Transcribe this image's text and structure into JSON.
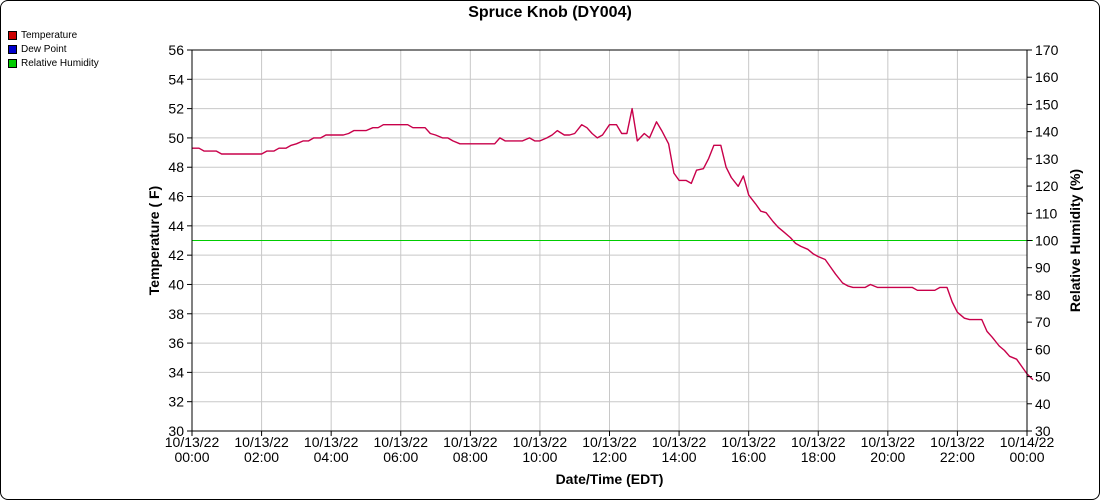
{
  "chart_data": {
    "type": "line",
    "title": "Spruce Knob (DY004)",
    "xlabel": "Date/Time (EDT)",
    "ylabel": "Temperature ( F)",
    "y2label": "Relative Humidity (%)",
    "xlim_hours": [
      0,
      24
    ],
    "ylim": [
      30,
      56
    ],
    "y2lim": [
      30,
      170
    ],
    "grid": true,
    "legend_placement": "top-left",
    "y_ticks": [
      30,
      32,
      34,
      36,
      38,
      40,
      42,
      44,
      46,
      48,
      50,
      52,
      54,
      56
    ],
    "y2_ticks": [
      30,
      40,
      50,
      60,
      70,
      80,
      90,
      100,
      110,
      120,
      130,
      140,
      150,
      160,
      170
    ],
    "x_tick_labels": [
      {
        "date": "10/13/22",
        "time": "00:00"
      },
      {
        "date": "10/13/22",
        "time": "02:00"
      },
      {
        "date": "10/13/22",
        "time": "04:00"
      },
      {
        "date": "10/13/22",
        "time": "06:00"
      },
      {
        "date": "10/13/22",
        "time": "08:00"
      },
      {
        "date": "10/13/22",
        "time": "10:00"
      },
      {
        "date": "10/13/22",
        "time": "12:00"
      },
      {
        "date": "10/13/22",
        "time": "14:00"
      },
      {
        "date": "10/13/22",
        "time": "16:00"
      },
      {
        "date": "10/13/22",
        "time": "18:00"
      },
      {
        "date": "10/13/22",
        "time": "20:00"
      },
      {
        "date": "10/13/22",
        "time": "22:00"
      },
      {
        "date": "10/14/22",
        "time": "00:00"
      }
    ],
    "legend": [
      {
        "name": "Temperature",
        "color": "#cc0000"
      },
      {
        "name": "Dew Point",
        "color": "#0000cc"
      },
      {
        "name": "Relative Humidity",
        "color": "#00cc00"
      }
    ],
    "series": [
      {
        "name": "Temperature",
        "color": "#c8004a",
        "axis": "left",
        "points": [
          [
            0.0,
            49.3
          ],
          [
            0.2,
            49.3
          ],
          [
            0.35,
            49.1
          ],
          [
            0.5,
            49.1
          ],
          [
            0.7,
            49.1
          ],
          [
            0.85,
            48.9
          ],
          [
            1.0,
            48.9
          ],
          [
            1.5,
            48.9
          ],
          [
            2.0,
            48.9
          ],
          [
            2.15,
            49.1
          ],
          [
            2.35,
            49.1
          ],
          [
            2.5,
            49.3
          ],
          [
            2.7,
            49.3
          ],
          [
            2.85,
            49.5
          ],
          [
            3.0,
            49.6
          ],
          [
            3.2,
            49.8
          ],
          [
            3.35,
            49.8
          ],
          [
            3.5,
            50.0
          ],
          [
            3.7,
            50.0
          ],
          [
            3.85,
            50.2
          ],
          [
            4.0,
            50.2
          ],
          [
            4.35,
            50.2
          ],
          [
            4.5,
            50.3
          ],
          [
            4.65,
            50.5
          ],
          [
            5.0,
            50.5
          ],
          [
            5.2,
            50.7
          ],
          [
            5.35,
            50.7
          ],
          [
            5.5,
            50.9
          ],
          [
            6.0,
            50.9
          ],
          [
            6.2,
            50.9
          ],
          [
            6.35,
            50.7
          ],
          [
            6.7,
            50.7
          ],
          [
            6.85,
            50.3
          ],
          [
            7.0,
            50.2
          ],
          [
            7.2,
            50.0
          ],
          [
            7.35,
            50.0
          ],
          [
            7.5,
            49.8
          ],
          [
            7.7,
            49.6
          ],
          [
            8.0,
            49.6
          ],
          [
            8.5,
            49.6
          ],
          [
            8.7,
            49.6
          ],
          [
            8.85,
            50.0
          ],
          [
            9.0,
            49.8
          ],
          [
            9.2,
            49.8
          ],
          [
            9.5,
            49.8
          ],
          [
            9.7,
            50.0
          ],
          [
            9.85,
            49.8
          ],
          [
            10.0,
            49.8
          ],
          [
            10.2,
            50.0
          ],
          [
            10.35,
            50.2
          ],
          [
            10.5,
            50.5
          ],
          [
            10.7,
            50.2
          ],
          [
            10.85,
            50.2
          ],
          [
            11.0,
            50.3
          ],
          [
            11.2,
            50.9
          ],
          [
            11.35,
            50.7
          ],
          [
            11.5,
            50.3
          ],
          [
            11.65,
            50.0
          ],
          [
            11.8,
            50.2
          ],
          [
            12.0,
            50.9
          ],
          [
            12.2,
            50.9
          ],
          [
            12.35,
            50.3
          ],
          [
            12.5,
            50.3
          ],
          [
            12.65,
            52.0
          ],
          [
            12.8,
            49.8
          ],
          [
            13.0,
            50.3
          ],
          [
            13.15,
            50.0
          ],
          [
            13.35,
            51.1
          ],
          [
            13.5,
            50.5
          ],
          [
            13.7,
            49.6
          ],
          [
            13.85,
            47.6
          ],
          [
            14.0,
            47.1
          ],
          [
            14.2,
            47.1
          ],
          [
            14.35,
            46.9
          ],
          [
            14.5,
            47.8
          ],
          [
            14.7,
            47.9
          ],
          [
            14.85,
            48.6
          ],
          [
            15.0,
            49.5
          ],
          [
            15.2,
            49.5
          ],
          [
            15.35,
            48.0
          ],
          [
            15.5,
            47.3
          ],
          [
            15.7,
            46.7
          ],
          [
            15.85,
            47.4
          ],
          [
            16.0,
            46.1
          ],
          [
            16.2,
            45.5
          ],
          [
            16.35,
            45.0
          ],
          [
            16.5,
            44.9
          ],
          [
            16.7,
            44.3
          ],
          [
            16.85,
            43.9
          ],
          [
            17.0,
            43.6
          ],
          [
            17.2,
            43.2
          ],
          [
            17.35,
            42.8
          ],
          [
            17.5,
            42.6
          ],
          [
            17.7,
            42.4
          ],
          [
            17.85,
            42.1
          ],
          [
            18.0,
            41.9
          ],
          [
            18.2,
            41.7
          ],
          [
            18.35,
            41.2
          ],
          [
            18.5,
            40.7
          ],
          [
            18.7,
            40.1
          ],
          [
            18.85,
            39.9
          ],
          [
            19.0,
            39.8
          ],
          [
            19.2,
            39.8
          ],
          [
            19.35,
            39.8
          ],
          [
            19.5,
            40.0
          ],
          [
            19.7,
            39.8
          ],
          [
            20.0,
            39.8
          ],
          [
            20.2,
            39.8
          ],
          [
            20.35,
            39.8
          ],
          [
            20.5,
            39.8
          ],
          [
            20.7,
            39.8
          ],
          [
            20.85,
            39.6
          ],
          [
            21.0,
            39.6
          ],
          [
            21.2,
            39.6
          ],
          [
            21.35,
            39.6
          ],
          [
            21.5,
            39.8
          ],
          [
            21.7,
            39.8
          ],
          [
            21.85,
            38.8
          ],
          [
            22.0,
            38.1
          ],
          [
            22.2,
            37.7
          ],
          [
            22.35,
            37.6
          ],
          [
            22.5,
            37.6
          ],
          [
            22.7,
            37.6
          ],
          [
            22.85,
            36.8
          ],
          [
            23.0,
            36.4
          ],
          [
            23.2,
            35.8
          ],
          [
            23.35,
            35.5
          ],
          [
            23.5,
            35.1
          ],
          [
            23.7,
            34.9
          ],
          [
            23.85,
            34.4
          ],
          [
            24.0,
            33.9
          ],
          [
            24.2,
            33.5
          ]
        ]
      },
      {
        "name": "Relative Humidity",
        "color": "#00cc00",
        "axis": "right",
        "points": [
          [
            0.0,
            100
          ],
          [
            24.2,
            100
          ]
        ]
      }
    ]
  }
}
